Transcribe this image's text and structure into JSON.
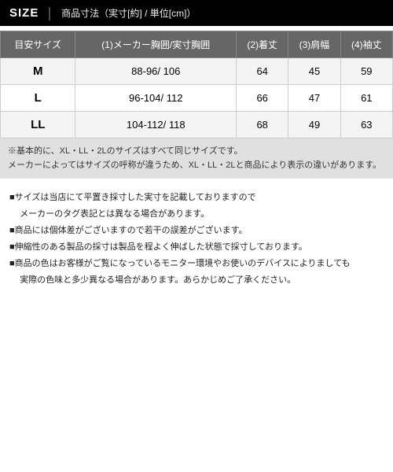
{
  "header": {
    "title": "SIZE",
    "subtitle": "商品寸法（実寸[約] / 単位[cm]）"
  },
  "table": {
    "columns": [
      "目安サイズ",
      "(1)メーカー胸囲/実寸胸囲",
      "(2)着丈",
      "(3)肩幅",
      "(4)袖丈"
    ],
    "rows": [
      {
        "size": "M",
        "chest": "88-96/ 106",
        "length": "64",
        "shoulder": "45",
        "sleeve": "59"
      },
      {
        "size": "L",
        "chest": "96-104/ 112",
        "length": "66",
        "shoulder": "47",
        "sleeve": "61"
      },
      {
        "size": "LL",
        "chest": "104-112/ 118",
        "length": "68",
        "shoulder": "49",
        "sleeve": "63"
      }
    ]
  },
  "gray_note": {
    "line1": "※基本的に、XL・LL・2Lのサイズはすべて同じサイズです。",
    "line2": "メーカーによってはサイズの呼称が違うため、XL・LL・2Lと商品により表示の違いがあります。"
  },
  "notes": [
    {
      "l1": "■サイズは当店にて平置き採寸した実寸を記載しておりますので",
      "l2": "メーカーのタグ表記とは異なる場合があります。"
    },
    {
      "l1": "■商品には個体差がございますので若干の誤差がございます。",
      "l2": ""
    },
    {
      "l1": "■伸縮性のある製品の採寸は製品を程よく伸ばした状態で採寸しております。",
      "l2": ""
    },
    {
      "l1": "■商品の色はお客様がご覧になっているモニター環境やお使いのデバイスによりましても",
      "l2": "実際の色味と多少異なる場合があります。あらかじめご了承ください。"
    }
  ],
  "colors": {
    "header_bg": "#000000",
    "header_fg": "#ffffff",
    "th_bg": "#666666",
    "th_fg": "#ffffff",
    "row_even": "#f4f4f4",
    "row_odd": "#ffffff",
    "gray_note_bg": "#e0e0e0",
    "text": "#222222"
  }
}
